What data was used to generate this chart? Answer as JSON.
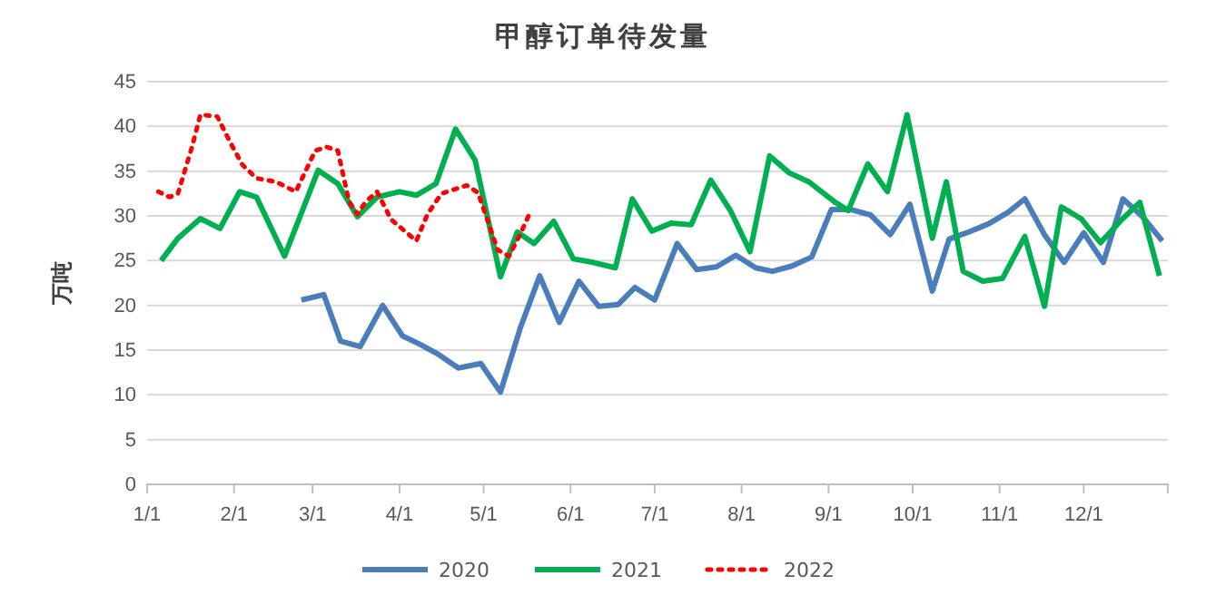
{
  "chart_data": {
    "type": "line",
    "title": "甲醇订单待发量",
    "ylabel": "万吨",
    "xlim": [
      "--01-01",
      "--12-31"
    ],
    "xticks": [
      {
        "value": "--01-01",
        "label": "1/1"
      },
      {
        "value": "--02-01",
        "label": "2/1"
      },
      {
        "value": "--03-01",
        "label": "3/1"
      },
      {
        "value": "--04-01",
        "label": "4/1"
      },
      {
        "value": "--05-01",
        "label": "5/1"
      },
      {
        "value": "--06-01",
        "label": "6/1"
      },
      {
        "value": "--07-01",
        "label": "7/1"
      },
      {
        "value": "--08-01",
        "label": "8/1"
      },
      {
        "value": "--09-01",
        "label": "9/1"
      },
      {
        "value": "--10-01",
        "label": "10/1"
      },
      {
        "value": "--11-01",
        "label": "11/1"
      },
      {
        "value": "--12-01",
        "label": "12/1"
      }
    ],
    "ylim": [
      0,
      45
    ],
    "yticks": [
      0,
      5,
      10,
      15,
      20,
      25,
      30,
      35,
      40,
      45
    ],
    "grid": "y",
    "legend": "bottom",
    "series": [
      {
        "name": "2020",
        "color": "#4a7ebb",
        "line_style": "solid",
        "x": [
          "--02-25",
          "--03-05",
          "--03-11",
          "--03-18",
          "--03-26",
          "--04-02",
          "--04-08",
          "--04-15",
          "--04-22",
          "--04-30",
          "--05-07",
          "--05-14",
          "--05-21",
          "--05-28",
          "--06-04",
          "--06-11",
          "--06-18",
          "--06-24",
          "--07-01",
          "--07-09",
          "--07-16",
          "--07-23",
          "--07-30",
          "--08-06",
          "--08-12",
          "--08-19",
          "--08-26",
          "--09-02",
          "--09-09",
          "--09-16",
          "--09-23",
          "--09-30",
          "--10-08",
          "--10-14",
          "--10-21",
          "--10-28",
          "--11-04",
          "--11-10",
          "--11-17",
          "--11-24",
          "--12-01",
          "--12-08",
          "--12-15",
          "--12-22",
          "--12-29"
        ],
        "values": [
          20.6,
          21.2,
          16,
          15.4,
          20,
          16.6,
          15.7,
          14.5,
          13,
          13.5,
          10.3,
          17.4,
          23.3,
          18.1,
          22.7,
          19.9,
          20.1,
          22,
          20.6,
          26.9,
          24,
          24.3,
          25.6,
          24.2,
          23.8,
          24.4,
          25.4,
          30.7,
          30.7,
          30.1,
          27.9,
          31.3,
          21.6,
          27.4,
          28.2,
          29.1,
          30.4,
          31.9,
          27.9,
          24.8,
          28.1,
          24.8,
          31.9,
          29.9,
          27.2
        ]
      },
      {
        "name": "2021",
        "color": "#00b050",
        "line_style": "solid",
        "x": [
          "--01-06",
          "--01-12",
          "--01-20",
          "--01-27",
          "--02-03",
          "--02-09",
          "--02-19",
          "--03-03",
          "--03-10",
          "--03-17",
          "--03-24",
          "--04-01",
          "--04-07",
          "--04-14",
          "--04-21",
          "--04-28",
          "--05-07",
          "--05-13",
          "--05-19",
          "--05-26",
          "--06-02",
          "--06-09",
          "--06-17",
          "--06-23",
          "--06-30",
          "--07-07",
          "--07-14",
          "--07-21",
          "--07-28",
          "--08-04",
          "--08-11",
          "--08-18",
          "--08-25",
          "--09-03",
          "--09-08",
          "--09-15",
          "--09-22",
          "--09-29",
          "--10-08",
          "--10-13",
          "--10-19",
          "--10-26",
          "--11-02",
          "--11-10",
          "--11-17",
          "--11-23",
          "--11-30",
          "--12-07",
          "--12-14",
          "--12-21",
          "--12-28"
        ],
        "values": [
          25,
          27.5,
          29.7,
          28.6,
          32.7,
          32.1,
          25.5,
          35.1,
          33.6,
          29.9,
          32.1,
          32.7,
          32.3,
          33.6,
          39.7,
          36.2,
          23.2,
          28.2,
          26.9,
          29.4,
          25.2,
          24.8,
          24.2,
          31.9,
          28.3,
          29.2,
          29,
          34,
          30.6,
          26,
          36.7,
          34.8,
          33.8,
          31.6,
          30.6,
          35.8,
          32.7,
          41.3,
          27.5,
          33.8,
          23.8,
          22.7,
          23,
          27.7,
          19.9,
          31,
          29.7,
          27,
          29.4,
          31.5,
          23.3
        ]
      },
      {
        "name": "2022",
        "color": "#ff0000",
        "line_style": "dotted",
        "x": [
          "--01-05",
          "--01-09",
          "--01-12",
          "--01-17",
          "--01-20",
          "--01-26",
          "--01-31",
          "--02-04",
          "--02-09",
          "--02-16",
          "--02-23",
          "--03-02",
          "--03-06",
          "--03-10",
          "--03-14",
          "--03-17",
          "--03-20",
          "--03-24",
          "--03-29",
          "--04-07",
          "--04-11",
          "--04-16",
          "--04-21",
          "--04-25",
          "--04-29",
          "--05-06",
          "--05-10",
          "--05-14",
          "--05-18"
        ],
        "values": [
          32.7,
          32.1,
          32.5,
          37.7,
          41.3,
          41.1,
          38,
          35.7,
          34.2,
          33.8,
          32.7,
          37.3,
          37.7,
          37.3,
          31.6,
          30.2,
          31.6,
          32.7,
          29.6,
          27.2,
          30.2,
          32.5,
          33,
          33.4,
          32.6,
          26.2,
          25.5,
          27.9,
          30.7
        ]
      }
    ]
  }
}
